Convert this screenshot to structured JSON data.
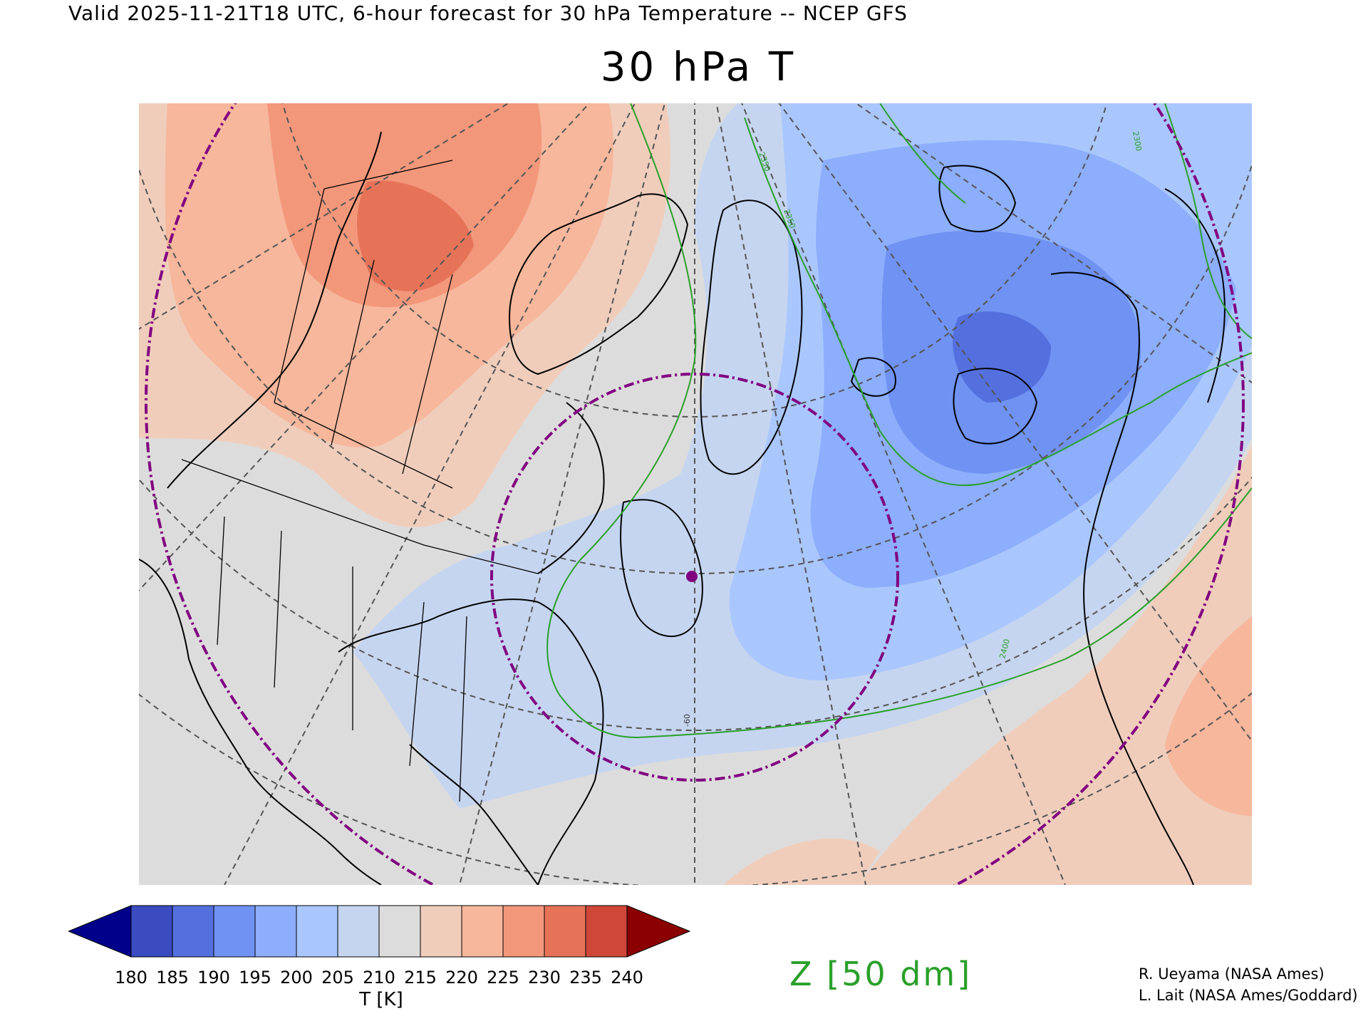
{
  "header": {
    "valid_line": "Valid 2025-11-21T18 UTC, 6-hour forecast for 30 hPa Temperature -- NCEP GFS",
    "title": "30 hPa T"
  },
  "map": {
    "projection": "polar stereographic",
    "region": "North America / North Atlantic / Arctic",
    "field": "30 hPa Temperature",
    "contour_labels": [
      "2350",
      "2350",
      "2300",
      "2400"
    ],
    "meridian_label": "-60",
    "colors": {
      "t_180": "#00008b",
      "t_185": "#3a4cc0",
      "t_190": "#5470de",
      "t_195": "#6f92f3",
      "t_200": "#8caefc",
      "t_205": "#aac7fd",
      "t_210": "#c5d5f0",
      "t_215": "#dddcdc",
      "t_220": "#f0cdbb",
      "t_225": "#f6b79c",
      "t_230": "#f3977b",
      "t_235": "#e67358",
      "t_240": "#cf4738",
      "t_above": "#8b0000",
      "contour_line": "#2aa02a",
      "vortex_edge": "#800080",
      "coastline": "#000000",
      "graticule": "#555555"
    }
  },
  "colorbar": {
    "ticks": [
      "180",
      "185",
      "190",
      "195",
      "200",
      "205",
      "210",
      "215",
      "220",
      "225",
      "230",
      "235",
      "240"
    ],
    "label": "T [K]"
  },
  "contour_legend": {
    "label": "Z [50 dm]"
  },
  "credits": {
    "line1": "R. Ueyama (NASA Ames)",
    "line2": "L. Lait (NASA Ames/Goddard)"
  }
}
